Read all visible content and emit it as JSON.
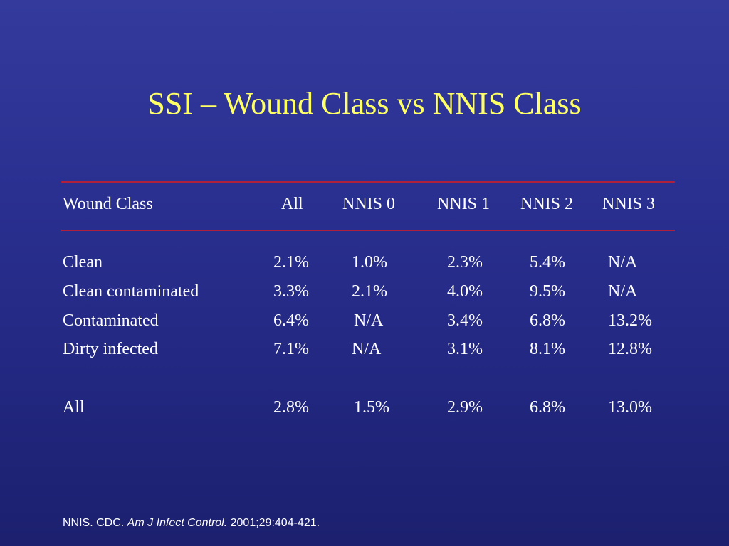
{
  "title": "SSI – Wound Class vs NNIS Class",
  "table": {
    "headers": [
      "Wound Class",
      "All",
      "NNIS 0",
      "NNIS 1",
      "NNIS 2",
      "NNIS 3"
    ],
    "rows": [
      {
        "label": "Clean",
        "values": [
          "2.1%",
          "1.0%",
          "2.3%",
          "5.4%",
          "N/A"
        ]
      },
      {
        "label": "Clean contaminated",
        "values": [
          "3.3%",
          "2.1%",
          "4.0%",
          "9.5%",
          "N/A"
        ]
      },
      {
        "label": "Contaminated",
        "values": [
          "6.4%",
          "N/A",
          "3.4%",
          "6.8%",
          "13.2%"
        ]
      },
      {
        "label": "Dirty infected",
        "values": [
          "7.1%",
          "N/A",
          "3.1%",
          "8.1%",
          "12.8%"
        ]
      },
      {
        "label": "All",
        "values": [
          "2.8%",
          "1.5%",
          "2.9%",
          "6.8%",
          "13.0%"
        ]
      }
    ]
  },
  "citation": {
    "prefix": "NNIS. CDC. ",
    "journal": "Am J Infect Control.",
    "suffix": " 2001;29:404-421."
  },
  "colors": {
    "background": "#2a3090",
    "title": "#ffff66",
    "rule": "#b0203c",
    "text": "#ffffff"
  }
}
